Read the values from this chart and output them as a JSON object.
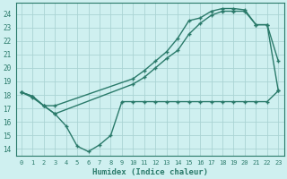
{
  "title": "",
  "xlabel": "Humidex (Indice chaleur)",
  "xlim": [
    -0.5,
    23.5
  ],
  "ylim": [
    13.5,
    24.8
  ],
  "yticks": [
    14,
    15,
    16,
    17,
    18,
    19,
    20,
    21,
    22,
    23,
    24
  ],
  "xticks": [
    0,
    1,
    2,
    3,
    4,
    5,
    6,
    7,
    8,
    9,
    10,
    11,
    12,
    13,
    14,
    15,
    16,
    17,
    18,
    19,
    20,
    21,
    22,
    23
  ],
  "bg_color": "#cff0f0",
  "grid_color": "#aad4d4",
  "line_color": "#2a7a6a",
  "curve1_x": [
    0,
    1,
    2,
    3,
    10,
    11,
    12,
    13,
    14,
    15,
    16,
    17,
    18,
    19,
    20,
    21,
    22,
    23
  ],
  "curve1_y": [
    18.2,
    17.9,
    17.2,
    17.2,
    19.2,
    19.8,
    20.5,
    21.2,
    22.2,
    23.5,
    23.7,
    24.2,
    24.4,
    24.4,
    24.3,
    23.2,
    23.2,
    20.5
  ],
  "curve2_x": [
    0,
    1,
    2,
    3,
    4,
    5,
    6,
    7,
    8,
    9,
    10,
    11,
    12,
    13,
    14,
    15,
    16,
    17,
    18,
    19,
    20,
    21,
    22,
    23
  ],
  "curve2_y": [
    18.2,
    17.8,
    17.2,
    16.6,
    15.7,
    14.2,
    13.8,
    14.3,
    15.0,
    17.5,
    17.5,
    17.5,
    17.5,
    17.5,
    17.5,
    17.5,
    17.5,
    17.5,
    17.5,
    17.5,
    17.5,
    17.5,
    17.5,
    18.3
  ],
  "curve3_x": [
    0,
    1,
    2,
    3,
    10,
    11,
    12,
    13,
    14,
    15,
    16,
    17,
    18,
    19,
    20,
    21,
    22,
    23
  ],
  "curve3_y": [
    18.2,
    17.9,
    17.2,
    16.6,
    18.8,
    19.3,
    20.0,
    20.7,
    21.3,
    22.5,
    23.3,
    23.9,
    24.2,
    24.2,
    24.2,
    23.2,
    23.2,
    18.3
  ],
  "marker_size": 2.5,
  "line_width": 1.0
}
